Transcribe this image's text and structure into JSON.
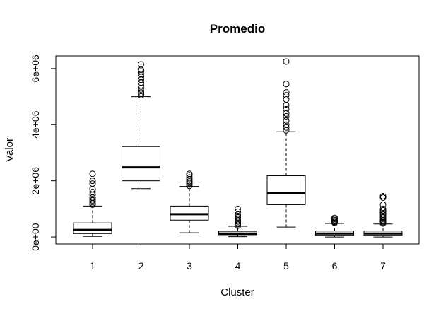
{
  "chart_data": {
    "type": "boxplot",
    "title": "Promedio",
    "xlabel": "Cluster",
    "ylabel": "Valor",
    "categories": [
      "1",
      "2",
      "3",
      "4",
      "5",
      "6",
      "7"
    ],
    "yticks": [
      0,
      2000000,
      4000000,
      6000000
    ],
    "ytick_labels": [
      "0e+00",
      "2e+06",
      "4e+06",
      "6e+06"
    ],
    "ylim": [
      -250000,
      6450000
    ],
    "grid": false,
    "legend": "none",
    "boxes": [
      {
        "category": "1",
        "whisker_low": 20000,
        "q1": 120000,
        "median": 250000,
        "q3": 500000,
        "whisker_high": 1100000,
        "outliers": [
          1150000,
          1200000,
          1250000,
          1300000,
          1350000,
          1400000,
          1500000,
          1600000,
          1700000,
          1900000,
          2000000,
          2250000
        ]
      },
      {
        "category": "2",
        "whisker_low": 1720000,
        "q1": 2000000,
        "median": 2480000,
        "q3": 3220000,
        "whisker_high": 5000000,
        "outliers": [
          5050000,
          5100000,
          5150000,
          5200000,
          5300000,
          5400000,
          5500000,
          5600000,
          5700000,
          5800000,
          5900000,
          5950000,
          6150000
        ]
      },
      {
        "category": "3",
        "whisker_low": 150000,
        "q1": 600000,
        "median": 810000,
        "q3": 1100000,
        "whisker_high": 1800000,
        "outliers": [
          1820000,
          1870000,
          1920000,
          1980000,
          2050000,
          2120000,
          2200000,
          2250000
        ]
      },
      {
        "category": "4",
        "whisker_low": 10000,
        "q1": 80000,
        "median": 120000,
        "q3": 200000,
        "whisker_high": 380000,
        "outliers": [
          400000,
          450000,
          500000,
          550000,
          600000,
          650000,
          700000,
          750000,
          800000,
          900000,
          1000000
        ]
      },
      {
        "category": "5",
        "whisker_low": 350000,
        "q1": 1150000,
        "median": 1550000,
        "q3": 2180000,
        "whisker_high": 3750000,
        "outliers": [
          3800000,
          3900000,
          4000000,
          4150000,
          4300000,
          4400000,
          4550000,
          4700000,
          4900000,
          5050000,
          5150000,
          5450000,
          6250000
        ]
      },
      {
        "category": "6",
        "whisker_low": 0,
        "q1": 60000,
        "median": 120000,
        "q3": 210000,
        "whisker_high": 480000,
        "outliers": [
          500000,
          530000,
          560000,
          600000,
          640000,
          680000
        ]
      },
      {
        "category": "7",
        "whisker_low": 0,
        "q1": 60000,
        "median": 120000,
        "q3": 210000,
        "whisker_high": 460000,
        "outliers": [
          480000,
          520000,
          560000,
          600000,
          650000,
          700000,
          750000,
          800000,
          850000,
          900000,
          950000,
          1000000,
          1150000,
          1400000,
          1450000
        ]
      }
    ]
  }
}
